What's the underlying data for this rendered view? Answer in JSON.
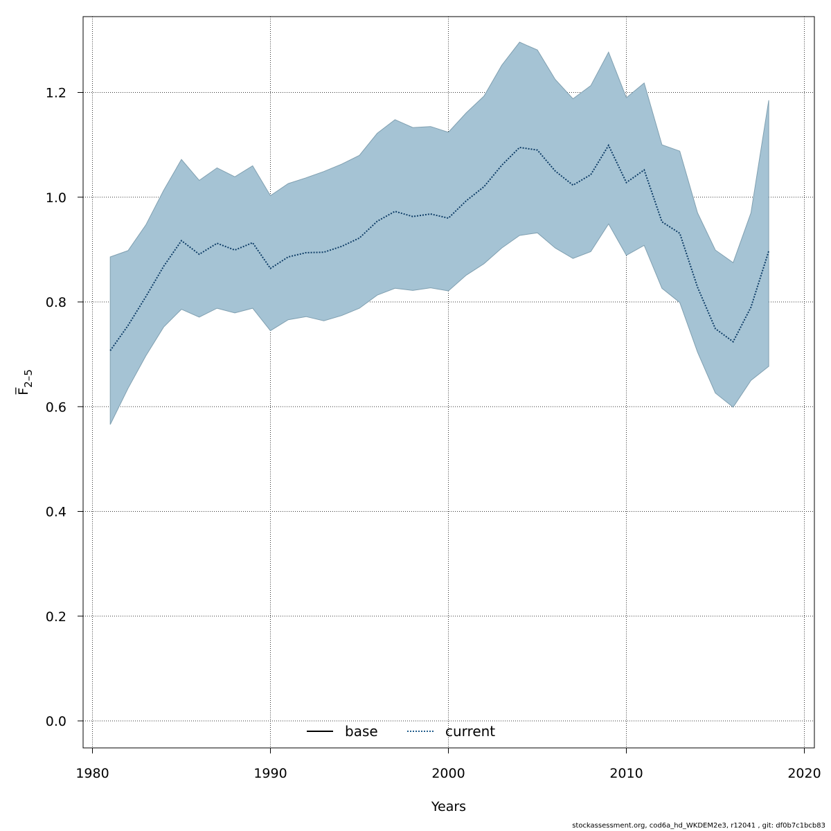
{
  "chart_data": {
    "type": "area",
    "xlabel": "Years",
    "ylabel": "F̅",
    "ylabel_sub": "2–5",
    "xlim": [
      1980,
      2020
    ],
    "ylim": [
      0.0,
      1.2
    ],
    "x_ticks": [
      "1980",
      "1990",
      "2000",
      "2010",
      "2020"
    ],
    "y_ticks": [
      "0.0",
      "0.2",
      "0.4",
      "0.6",
      "0.8",
      "1.0",
      "1.2"
    ],
    "grid": true,
    "legend_position": "bottom-center",
    "legend": [
      {
        "label": "base",
        "style": "solid",
        "color": "#000000"
      },
      {
        "label": "current",
        "style": "dotted",
        "color": "#1f5a8a"
      }
    ],
    "colors": {
      "band_fill": "#a5c3d4",
      "band_stroke": "#7f9fb0",
      "current_line": "#0d3c66"
    },
    "x": [
      1981,
      1982,
      1983,
      1984,
      1985,
      1986,
      1987,
      1988,
      1989,
      1990,
      1991,
      1992,
      1993,
      1994,
      1995,
      1996,
      1997,
      1998,
      1999,
      2000,
      2001,
      2002,
      2003,
      2004,
      2005,
      2006,
      2007,
      2008,
      2009,
      2010,
      2011,
      2012,
      2013,
      2014,
      2015,
      2016,
      2017,
      2018
    ],
    "series": [
      {
        "name": "current",
        "role": "estimate",
        "values": [
          0.707,
          0.755,
          0.81,
          0.868,
          0.917,
          0.891,
          0.912,
          0.899,
          0.913,
          0.864,
          0.886,
          0.894,
          0.895,
          0.906,
          0.922,
          0.954,
          0.973,
          0.963,
          0.968,
          0.96,
          0.993,
          1.02,
          1.061,
          1.095,
          1.09,
          1.05,
          1.023,
          1.043,
          1.099,
          1.028,
          1.052,
          0.953,
          0.931,
          0.828,
          0.749,
          0.724,
          0.79,
          0.897
        ]
      },
      {
        "name": "upper",
        "role": "band_upper",
        "values": [
          0.886,
          0.898,
          0.947,
          1.013,
          1.072,
          1.032,
          1.056,
          1.039,
          1.06,
          1.003,
          1.026,
          1.037,
          1.049,
          1.063,
          1.08,
          1.122,
          1.148,
          1.133,
          1.135,
          1.124,
          1.161,
          1.193,
          1.252,
          1.296,
          1.281,
          1.225,
          1.188,
          1.213,
          1.277,
          1.19,
          1.218,
          1.1,
          1.088,
          0.97,
          0.899,
          0.875,
          0.97,
          1.185
        ]
      },
      {
        "name": "lower",
        "role": "band_lower",
        "values": [
          0.566,
          0.635,
          0.697,
          0.752,
          0.786,
          0.771,
          0.788,
          0.779,
          0.788,
          0.745,
          0.766,
          0.772,
          0.764,
          0.774,
          0.788,
          0.813,
          0.826,
          0.822,
          0.827,
          0.821,
          0.851,
          0.873,
          0.903,
          0.927,
          0.932,
          0.903,
          0.883,
          0.896,
          0.949,
          0.889,
          0.908,
          0.826,
          0.799,
          0.704,
          0.626,
          0.599,
          0.65,
          0.677
        ]
      }
    ]
  },
  "footer": "stockassessment.org, cod6a_hd_WKDEM2e3, r12041 , git: df0b7c1bcb83"
}
